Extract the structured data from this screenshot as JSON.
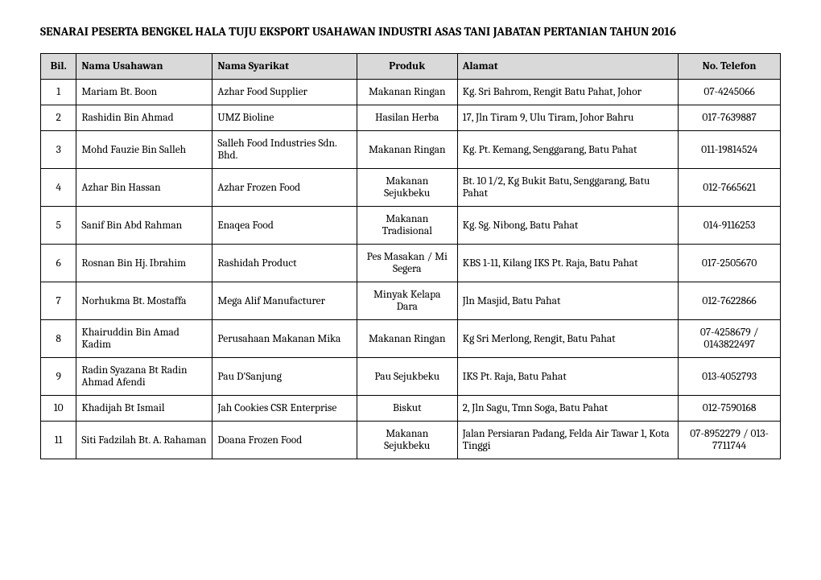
{
  "title": "SENARAI PESERTA BENGKEL HALA TUJU EKSPORT USAHAWAN INDUSTRI ASAS TANI JABATAN PERTANIAN TAHUN 2016",
  "table": {
    "columns": [
      {
        "key": "bil",
        "label": "Bil.",
        "class": "col-bil"
      },
      {
        "key": "nama",
        "label": "Nama Usahawan",
        "class": "col-nama"
      },
      {
        "key": "syarikat",
        "label": "Nama Syarikat",
        "class": "col-syarikat"
      },
      {
        "key": "produk",
        "label": "Produk",
        "class": "col-produk"
      },
      {
        "key": "alamat",
        "label": "Alamat",
        "class": "col-alamat"
      },
      {
        "key": "telefon",
        "label": "No. Telefon",
        "class": "col-telefon"
      }
    ],
    "rows": [
      {
        "bil": "1",
        "nama": "Mariam Bt. Boon",
        "syarikat": "Azhar Food Supplier",
        "produk": "Makanan Ringan",
        "alamat": "Kg. Sri Bahrom, Rengit Batu Pahat, Johor",
        "telefon": "07-4245066"
      },
      {
        "bil": "2",
        "nama": "Rashidin Bin Ahmad",
        "syarikat": "UMZ Bioline",
        "produk": "Hasilan Herba",
        "alamat": "17, Jln Tiram 9, Ulu Tiram, Johor Bahru",
        "telefon": "017-7639887"
      },
      {
        "bil": "3",
        "nama": "Mohd Fauzie Bin Salleh",
        "syarikat": "Salleh Food Industries Sdn. Bhd.",
        "produk": "Makanan Ringan",
        "alamat": "Kg. Pt. Kemang, Senggarang, Batu Pahat",
        "telefon": "011-19814524"
      },
      {
        "bil": "4",
        "nama": "Azhar Bin Hassan",
        "syarikat": "Azhar Frozen Food",
        "produk": "Makanan Sejukbeku",
        "alamat": "Bt. 10 1/2, Kg Bukit Batu, Senggarang, Batu Pahat",
        "telefon": "012-7665621"
      },
      {
        "bil": "5",
        "nama": "Sanif Bin Abd Rahman",
        "syarikat": "Enaqea Food",
        "produk": "Makanan Tradisional",
        "alamat": "Kg. Sg. Nibong, Batu Pahat",
        "telefon": "014-9116253"
      },
      {
        "bil": "6",
        "nama": "Rosnan Bin Hj. Ibrahim",
        "syarikat": "Rashidah Product",
        "produk": "Pes Masakan / Mi Segera",
        "alamat": "KBS 1-11, Kilang IKS Pt. Raja, Batu Pahat",
        "telefon": "017-2505670"
      },
      {
        "bil": "7",
        "nama": "Norhukma Bt. Mostaffa",
        "syarikat": "Mega Alif Manufacturer",
        "produk": "Minyak Kelapa Dara",
        "alamat": "Jln Masjid, Batu Pahat",
        "telefon": "012-7622866"
      },
      {
        "bil": "8",
        "nama": "Khairuddin Bin Amad Kadim",
        "syarikat": "Perusahaan Makanan Mika",
        "produk": "Makanan Ringan",
        "alamat": "Kg Sri Merlong, Rengit, Batu Pahat",
        "telefon": "07-4258679 / 0143822497"
      },
      {
        "bil": "9",
        "nama": "Radin Syazana Bt Radin Ahmad Afendi",
        "syarikat": "Pau D'Sanjung",
        "produk": "Pau Sejukbeku",
        "alamat": "IKS Pt. Raja, Batu Pahat",
        "telefon": "013-4052793"
      },
      {
        "bil": "10",
        "nama": "Khadijah Bt Ismail",
        "syarikat": "Jah Cookies CSR Enterprise",
        "produk": "Biskut",
        "alamat": "2, Jln Sagu, Tmn Soga, Batu Pahat",
        "telefon": "012-7590168"
      },
      {
        "bil": "11",
        "nama": "Siti Fadzilah Bt. A. Rahaman",
        "syarikat": "Doana Frozen Food",
        "produk": "Makanan Sejukbeku",
        "alamat": "Jalan Persiaran Padang, Felda Air Tawar 1, Kota Tinggi",
        "telefon": "07-8952279 / 013-7711744"
      }
    ]
  },
  "colors": {
    "header_bg": "#d9d9d9",
    "border": "#000000",
    "text": "#000000",
    "background": "#ffffff"
  },
  "typography": {
    "title_fontsize": 15,
    "title_weight": "bold",
    "cell_fontsize": 13.5,
    "font_family": "Cambria, Georgia, serif"
  }
}
